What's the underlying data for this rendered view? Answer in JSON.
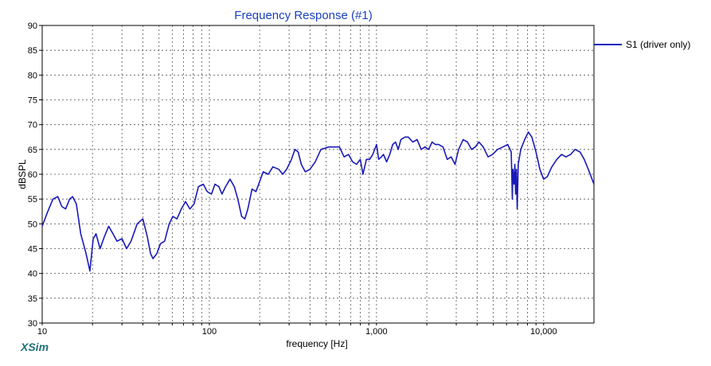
{
  "app": {
    "name": "XSim"
  },
  "colors": {
    "title": "#1a3fbf",
    "series": "#1a1ab8",
    "brand": "#1f6f7a",
    "axis": "#000000",
    "grid": "#555555"
  },
  "chart_data": {
    "type": "line",
    "title": "Frequency Response (#1)",
    "xlabel": "frequency [Hz]",
    "ylabel": "dBSPL",
    "x_scale": "log",
    "xlim": [
      10,
      20000
    ],
    "ylim": [
      30,
      90
    ],
    "grid": true,
    "legend_position": "top-right",
    "y_ticks": [
      30,
      35,
      40,
      45,
      50,
      55,
      60,
      65,
      70,
      75,
      80,
      85,
      90
    ],
    "y_tick_labels": [
      "30",
      "35",
      "40",
      "45",
      "50",
      "55",
      "60",
      "65",
      "70",
      "75",
      "80",
      "85",
      "90"
    ],
    "x_major_ticks": [
      10,
      100,
      1000,
      10000
    ],
    "x_tick_labels": [
      "10",
      "100",
      "1,000",
      "10,000"
    ],
    "x_minor_ticks": [
      20,
      30,
      40,
      50,
      60,
      70,
      80,
      90,
      200,
      300,
      400,
      500,
      600,
      700,
      800,
      900,
      2000,
      3000,
      4000,
      5000,
      6000,
      7000,
      8000,
      9000
    ],
    "series": [
      {
        "name": "S1 (driver only)",
        "color": "#1a1ab8",
        "points": [
          [
            10,
            49.5
          ],
          [
            10.8,
            52.5
          ],
          [
            11.6,
            55
          ],
          [
            12.4,
            55.5
          ],
          [
            13.1,
            53.5
          ],
          [
            13.8,
            53
          ],
          [
            14.6,
            55
          ],
          [
            15.2,
            55.5
          ],
          [
            16,
            54
          ],
          [
            17,
            48
          ],
          [
            18.3,
            44
          ],
          [
            19.3,
            40.5
          ],
          [
            20.2,
            47
          ],
          [
            21,
            48
          ],
          [
            22.2,
            45
          ],
          [
            23.6,
            47.5
          ],
          [
            25,
            49.5
          ],
          [
            26.5,
            48
          ],
          [
            28,
            46.5
          ],
          [
            30,
            47
          ],
          [
            32,
            45
          ],
          [
            34,
            46.5
          ],
          [
            37,
            50
          ],
          [
            40,
            51
          ],
          [
            42.5,
            47.5
          ],
          [
            44.5,
            44
          ],
          [
            46,
            43
          ],
          [
            48.5,
            44
          ],
          [
            51,
            46
          ],
          [
            54,
            46.5
          ],
          [
            57.5,
            50
          ],
          [
            60.5,
            51.5
          ],
          [
            64,
            51
          ],
          [
            68,
            53
          ],
          [
            72,
            54.5
          ],
          [
            76.5,
            53
          ],
          [
            81,
            54
          ],
          [
            86,
            57.5
          ],
          [
            92,
            58
          ],
          [
            97,
            56.5
          ],
          [
            103,
            56
          ],
          [
            108,
            58
          ],
          [
            114,
            57.5
          ],
          [
            119,
            56
          ],
          [
            125,
            57.5
          ],
          [
            133,
            59
          ],
          [
            141,
            57.5
          ],
          [
            148,
            55
          ],
          [
            156,
            51.5
          ],
          [
            163,
            51
          ],
          [
            170,
            53
          ],
          [
            180,
            57
          ],
          [
            190,
            56.5
          ],
          [
            200,
            58.5
          ],
          [
            210,
            60.5
          ],
          [
            225,
            60
          ],
          [
            240,
            61.5
          ],
          [
            260,
            61
          ],
          [
            275,
            60
          ],
          [
            290,
            61
          ],
          [
            310,
            63
          ],
          [
            325,
            65
          ],
          [
            340,
            64.5
          ],
          [
            355,
            62
          ],
          [
            375,
            60.5
          ],
          [
            400,
            61
          ],
          [
            430,
            62.5
          ],
          [
            465,
            65
          ],
          [
            520,
            65.5
          ],
          [
            600,
            65.5
          ],
          [
            640,
            63.5
          ],
          [
            680,
            64
          ],
          [
            720,
            62.5
          ],
          [
            760,
            62
          ],
          [
            800,
            63
          ],
          [
            830,
            60
          ],
          [
            870,
            63
          ],
          [
            910,
            63
          ],
          [
            950,
            64
          ],
          [
            1000,
            66
          ],
          [
            1030,
            63
          ],
          [
            1070,
            63.5
          ],
          [
            1100,
            64
          ],
          [
            1150,
            62.5
          ],
          [
            1200,
            64
          ],
          [
            1250,
            66
          ],
          [
            1300,
            66.5
          ],
          [
            1350,
            65
          ],
          [
            1400,
            67
          ],
          [
            1480,
            67.5
          ],
          [
            1550,
            67.5
          ],
          [
            1650,
            66.5
          ],
          [
            1750,
            67
          ],
          [
            1850,
            65
          ],
          [
            1950,
            65.5
          ],
          [
            2050,
            65
          ],
          [
            2150,
            66.5
          ],
          [
            2250,
            66
          ],
          [
            2350,
            66
          ],
          [
            2500,
            65.5
          ],
          [
            2650,
            63
          ],
          [
            2800,
            63.5
          ],
          [
            2950,
            62
          ],
          [
            3100,
            65
          ],
          [
            3300,
            67
          ],
          [
            3500,
            66.5
          ],
          [
            3700,
            65
          ],
          [
            3900,
            65.5
          ],
          [
            4100,
            66.5
          ],
          [
            4350,
            65.5
          ],
          [
            4650,
            63.5
          ],
          [
            4950,
            64
          ],
          [
            5300,
            65
          ],
          [
            5700,
            65.5
          ],
          [
            6100,
            66
          ],
          [
            6400,
            64.5
          ],
          [
            6500,
            55
          ],
          [
            6550,
            61
          ],
          [
            6650,
            58
          ],
          [
            6720,
            62
          ],
          [
            6800,
            56
          ],
          [
            6870,
            61
          ],
          [
            6950,
            53
          ],
          [
            7050,
            62
          ],
          [
            7300,
            65
          ],
          [
            7700,
            67
          ],
          [
            8100,
            68.5
          ],
          [
            8500,
            67.5
          ],
          [
            9000,
            64.5
          ],
          [
            9500,
            61
          ],
          [
            10000,
            59
          ],
          [
            10500,
            59.5
          ],
          [
            11200,
            61.5
          ],
          [
            12000,
            63
          ],
          [
            12800,
            64
          ],
          [
            13600,
            63.5
          ],
          [
            14500,
            64
          ],
          [
            15400,
            65
          ],
          [
            16500,
            64.5
          ],
          [
            17500,
            63
          ],
          [
            18500,
            61
          ],
          [
            20000,
            58
          ]
        ]
      }
    ]
  }
}
